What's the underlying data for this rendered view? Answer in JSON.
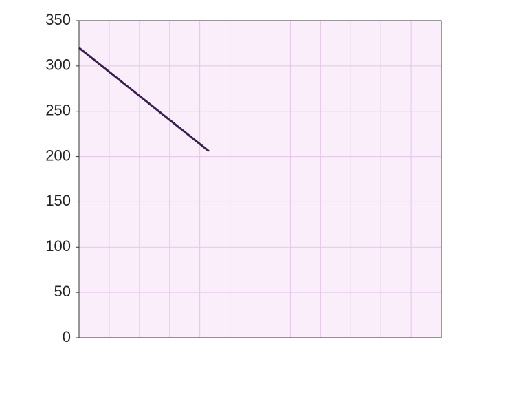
{
  "chart_data": {
    "type": "line",
    "x": [
      0,
      4.3
    ],
    "series": [
      {
        "color": "#3a1f4f",
        "values": [
          320,
          206
        ]
      }
    ],
    "xlim": [
      0,
      12
    ],
    "ylim": [
      0,
      350
    ],
    "yticks": [
      350,
      300,
      250,
      200,
      150,
      100,
      50,
      0
    ],
    "grid": true
  }
}
